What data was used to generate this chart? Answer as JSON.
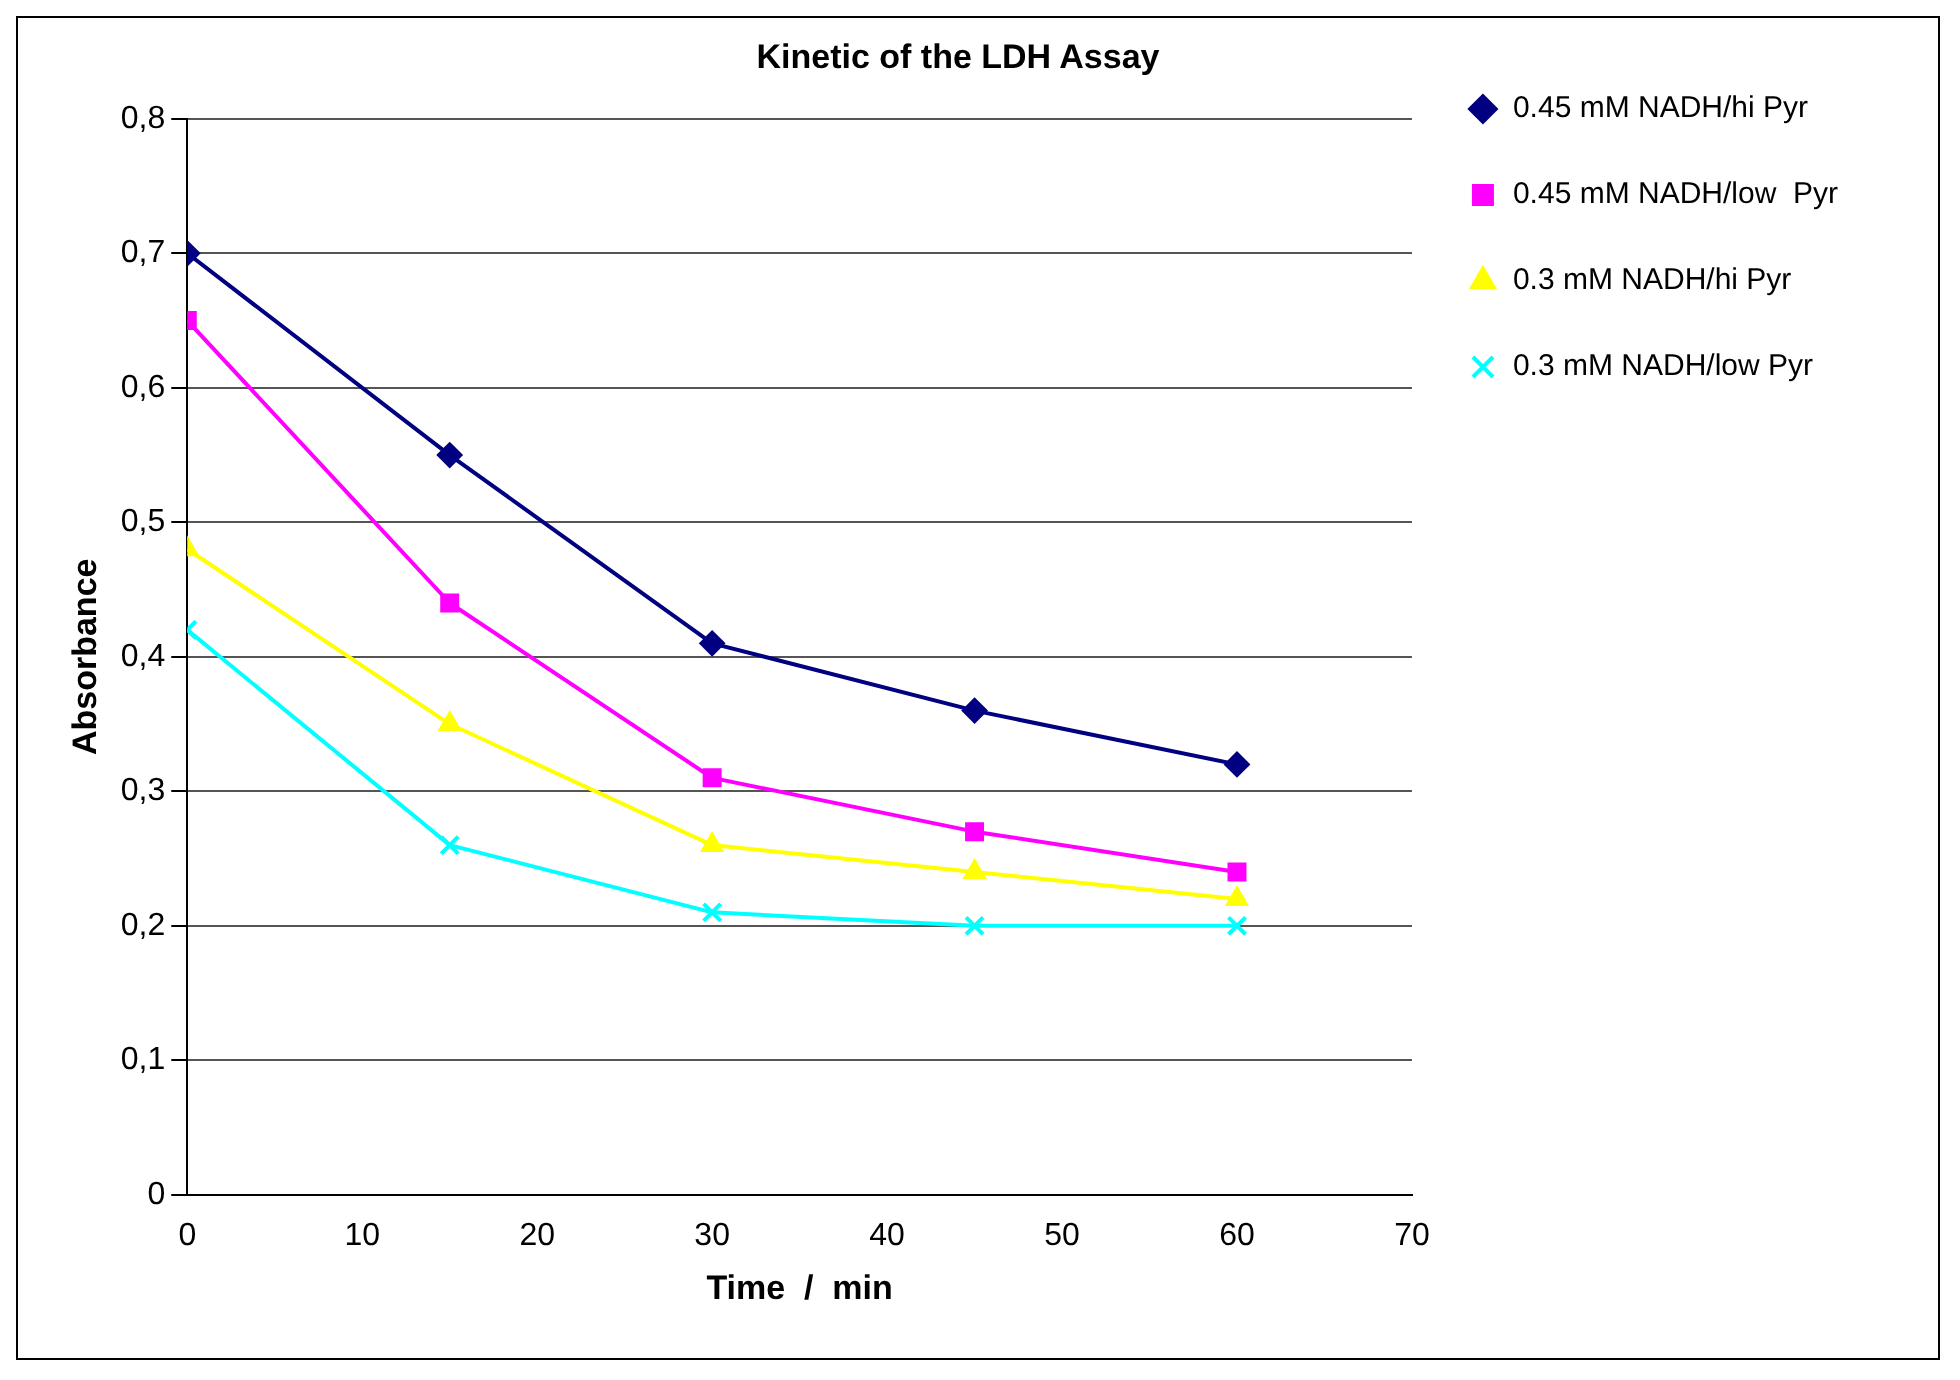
{
  "chart_data": {
    "type": "line",
    "title": "Kinetic of the LDH Assay",
    "xlabel": "Time  /  min",
    "ylabel": "Absorbance",
    "x": [
      0,
      15,
      30,
      45,
      60
    ],
    "series": [
      {
        "name": "0.45 mM NADH/hi Pyr",
        "color": "#000080",
        "marker": "diamond",
        "values": [
          0.7,
          0.55,
          0.41,
          0.36,
          0.32
        ]
      },
      {
        "name": "0.45 mM NADH/low  Pyr",
        "color": "#ff00ff",
        "marker": "square",
        "values": [
          0.65,
          0.44,
          0.31,
          0.27,
          0.24
        ]
      },
      {
        "name": "0.3 mM NADH/hi Pyr",
        "color": "#ffff00",
        "marker": "triangle",
        "values": [
          0.48,
          0.35,
          0.26,
          0.24,
          0.22
        ]
      },
      {
        "name": "0.3 mM NADH/low Pyr",
        "color": "#00ffff",
        "marker": "cross",
        "values": [
          0.42,
          0.26,
          0.21,
          0.2,
          0.2
        ]
      }
    ],
    "xlim": [
      0,
      70
    ],
    "xticks": [
      0,
      10,
      20,
      30,
      40,
      50,
      60,
      70
    ],
    "ylim": [
      0,
      0.8
    ],
    "yticks": [
      {
        "value": 0,
        "label": "0"
      },
      {
        "value": 0.1,
        "label": "0,1"
      },
      {
        "value": 0.2,
        "label": "0,2"
      },
      {
        "value": 0.3,
        "label": "0,3"
      },
      {
        "value": 0.4,
        "label": "0,4"
      },
      {
        "value": 0.5,
        "label": "0,5"
      },
      {
        "value": 0.6,
        "label": "0,6"
      },
      {
        "value": 0.7,
        "label": "0,7"
      },
      {
        "value": 0.8,
        "label": "0,8"
      }
    ],
    "grid": "y",
    "legend": "top right",
    "line_style": "solid"
  }
}
